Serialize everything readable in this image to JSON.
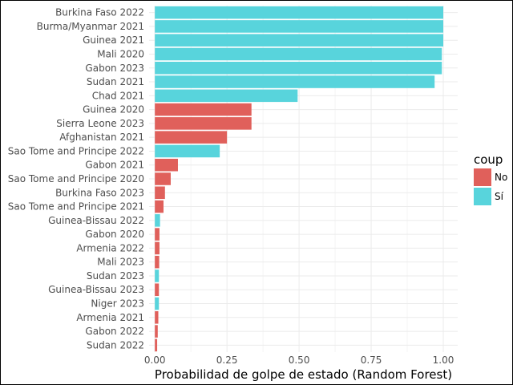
{
  "chart_data": {
    "type": "bar",
    "orientation": "horizontal",
    "categories": [
      "Burkina Faso 2022",
      "Burma/Myanmar 2021",
      "Guinea 2021",
      "Mali 2020",
      "Gabon 2023",
      "Sudan 2021",
      "Chad 2021",
      "Guinea 2020",
      "Sierra Leone 2023",
      "Afghanistan 2021",
      "Sao Tome and Principe 2022",
      "Gabon 2021",
      "Sao Tome and Principe 2020",
      "Burkina Faso 2023",
      "Sao Tome and Principe 2021",
      "Guinea-Bissau 2022",
      "Gabon 2020",
      "Armenia 2022",
      "Mali 2023",
      "Sudan 2023",
      "Guinea-Bissau 2023",
      "Niger 2023",
      "Armenia 2021",
      "Gabon 2022",
      "Sudan 2022"
    ],
    "values": [
      1.0,
      1.0,
      1.0,
      0.995,
      0.995,
      0.97,
      0.495,
      0.335,
      0.335,
      0.25,
      0.225,
      0.08,
      0.055,
      0.035,
      0.03,
      0.018,
      0.016,
      0.016,
      0.015,
      0.014,
      0.014,
      0.014,
      0.012,
      0.01,
      0.008
    ],
    "coup": [
      "Sí",
      "Sí",
      "Sí",
      "Sí",
      "Sí",
      "Sí",
      "Sí",
      "No",
      "No",
      "No",
      "Sí",
      "No",
      "No",
      "No",
      "No",
      "Sí",
      "No",
      "No",
      "No",
      "Sí",
      "No",
      "Sí",
      "No",
      "No",
      "No"
    ],
    "xlabel": "Probabilidad de golpe de estado (Random Forest)",
    "ylabel": "",
    "xlim": [
      -0.02,
      1.05
    ],
    "xticks": [
      0.0,
      0.25,
      0.5,
      0.75,
      1.0
    ],
    "xtick_labels": [
      "0.00",
      "0.25",
      "0.50",
      "0.75",
      "1.00"
    ],
    "grid": true,
    "legend": {
      "title": "coup",
      "placement": "right",
      "entries": [
        {
          "label": "No",
          "color": "#e0605b"
        },
        {
          "label": "Sí",
          "color": "#58d4dc"
        }
      ]
    }
  }
}
